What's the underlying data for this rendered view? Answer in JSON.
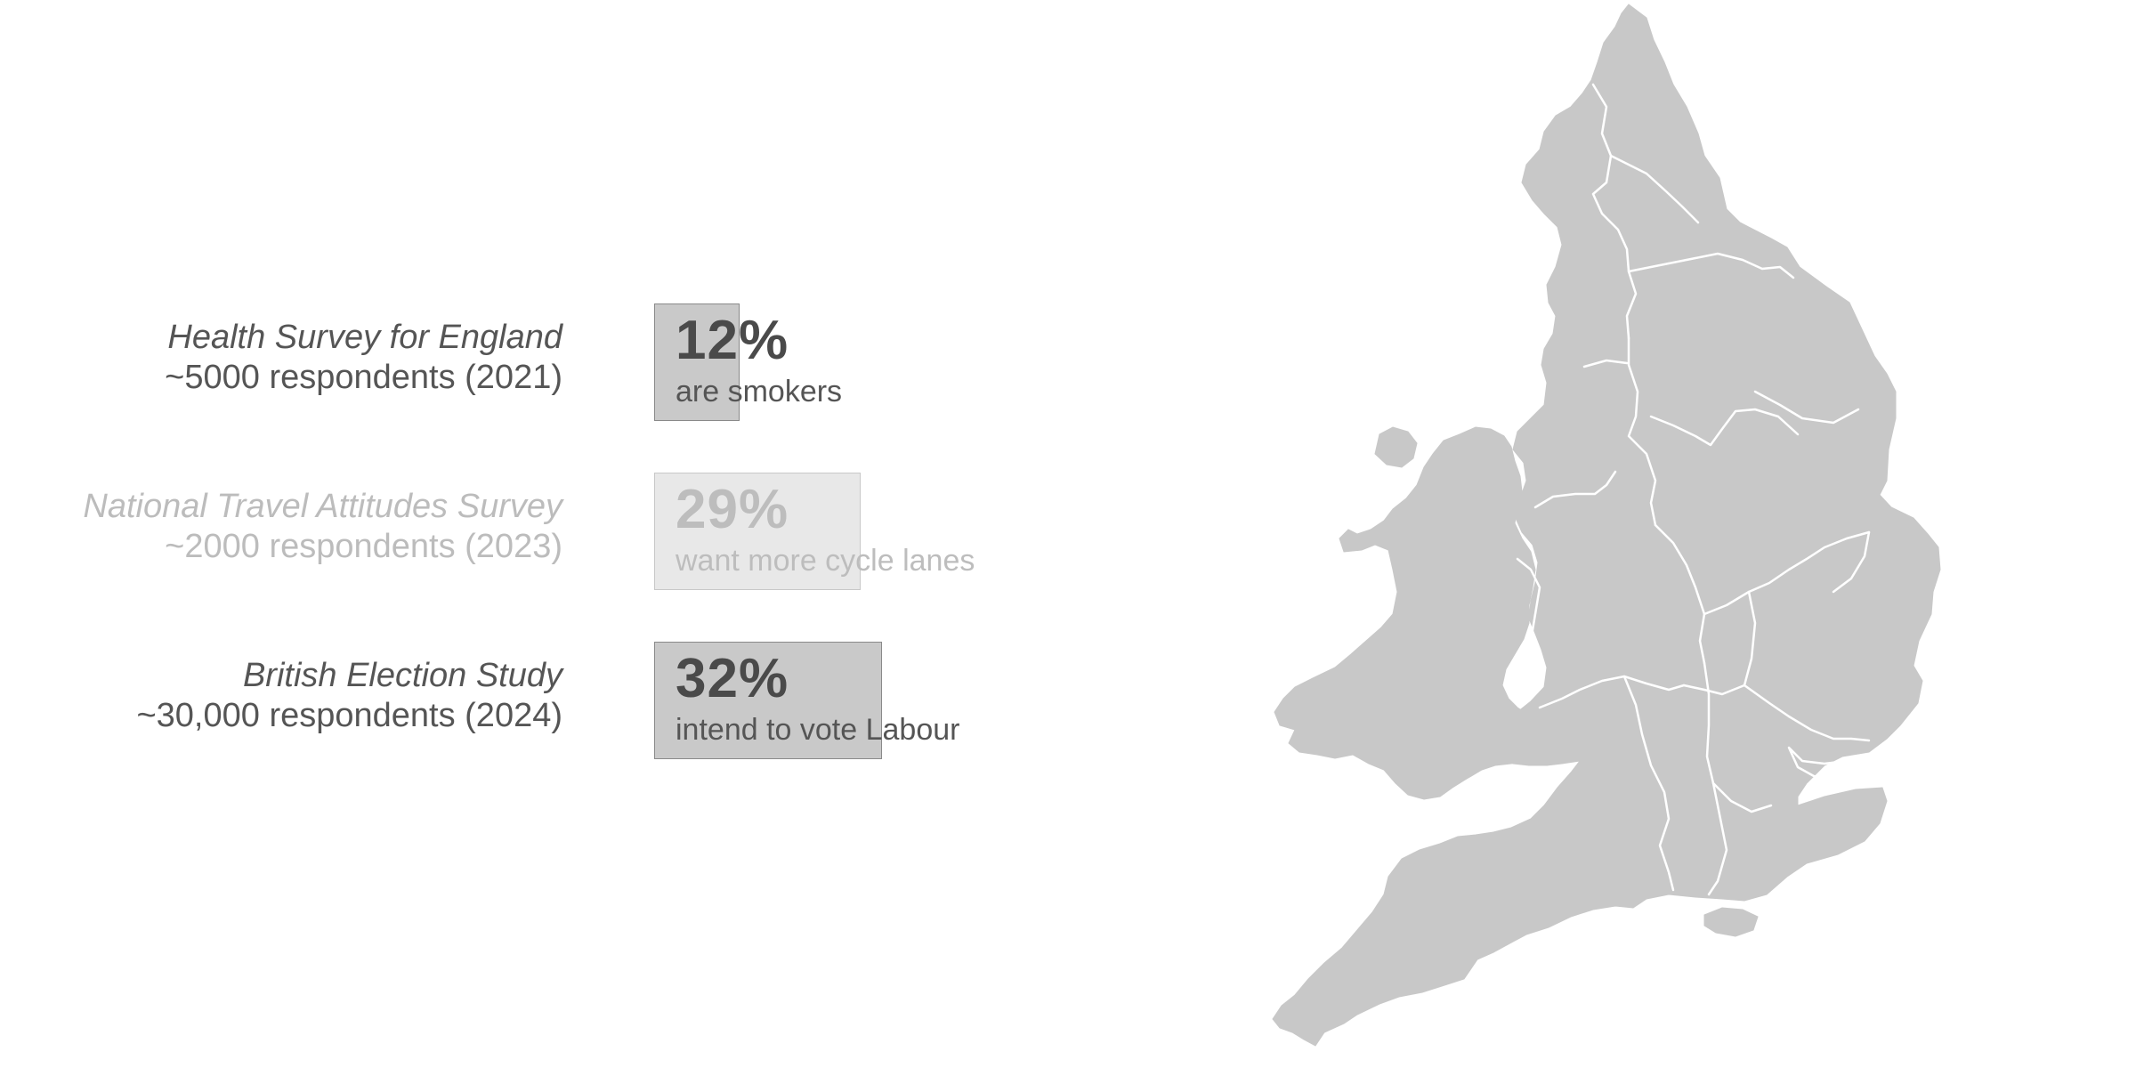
{
  "surveys": [
    {
      "name": "Health Survey for England",
      "meta": "~5000 respondents (2021)",
      "percent_label": "12%",
      "percent_value": 12,
      "description": "are smokers",
      "highlighted": true
    },
    {
      "name": "National Travel Attitudes Survey",
      "meta": "~2000 respondents (2023)",
      "percent_label": "29%",
      "percent_value": 29,
      "description": "want more cycle lanes",
      "highlighted": false
    },
    {
      "name": "British Election Study",
      "meta": "~30,000 respondents (2024)",
      "percent_label": "32%",
      "percent_value": 32,
      "description": "intend to vote Labour",
      "highlighted": true
    }
  ],
  "map": {
    "region": "England and Wales",
    "fill_color": "#c8c8c8",
    "border_color": "#ffffff"
  },
  "colors": {
    "text": "#555555",
    "text_faded": "#bcbcbc",
    "box_fill": "#c9c9c9",
    "box_fill_faded": "#e8e8e8"
  }
}
